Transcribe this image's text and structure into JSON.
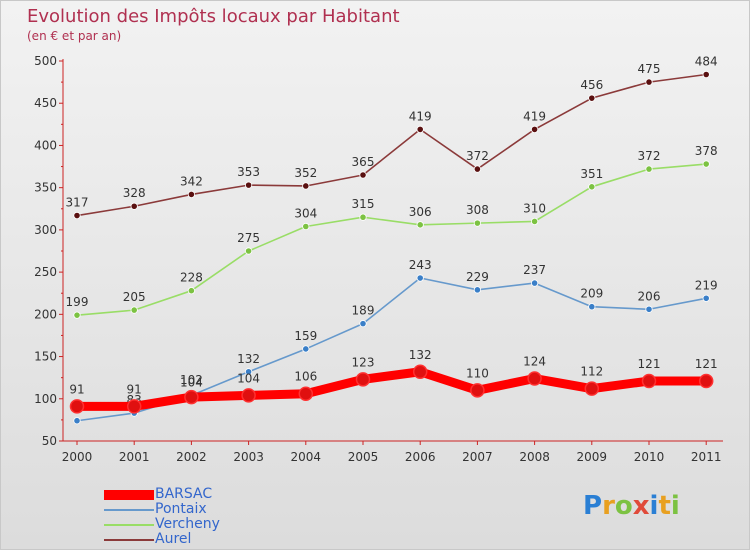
{
  "header": {
    "title": "Evolution des Impôts locaux par Habitant",
    "subtitle": "(en € et par an)"
  },
  "logo": {
    "text": "Proxiti",
    "letters": [
      {
        "ch": "P",
        "color": "#2a7fd4"
      },
      {
        "ch": "r",
        "color": "#e8a020"
      },
      {
        "ch": "o",
        "color": "#7cc242"
      },
      {
        "ch": "x",
        "color": "#e04a3a"
      },
      {
        "ch": "i",
        "color": "#2a7fd4"
      },
      {
        "ch": "t",
        "color": "#e8a020"
      },
      {
        "ch": "i",
        "color": "#7cc242"
      }
    ]
  },
  "chart_data": {
    "type": "line",
    "title": "Evolution des Impôts locaux par Habitant",
    "subtitle": "(en € et par an)",
    "x": [
      2000,
      2001,
      2002,
      2003,
      2004,
      2005,
      2006,
      2007,
      2008,
      2009,
      2010,
      2011
    ],
    "x_tick_labels": [
      "2000",
      "2001",
      "2002",
      "2003",
      "2004",
      "2005",
      "2006",
      "2007",
      "2008",
      "2009",
      "2010",
      "2011"
    ],
    "ylim": [
      50,
      500
    ],
    "y_ticks": [
      50,
      100,
      150,
      200,
      250,
      300,
      350,
      400,
      450,
      500
    ],
    "y_tick_labels": [
      "50",
      "100",
      "150",
      "200",
      "250",
      "300",
      "350",
      "400",
      "450",
      "500"
    ],
    "grid": false,
    "legend_position": "bottom-left",
    "series": [
      {
        "name": "BARSAC",
        "color": "#ff0000",
        "marker_color": "#e01010",
        "emphasis": true,
        "values": [
          91,
          91,
          102,
          104,
          106,
          123,
          132,
          110,
          124,
          112,
          121,
          121
        ],
        "labels": [
          "91",
          "91",
          "102",
          "104",
          "106",
          "123",
          "132",
          "110",
          "124",
          "112",
          "121",
          "121"
        ]
      },
      {
        "name": "Pontaix",
        "color": "#6699cc",
        "marker_color": "#3a7fc8",
        "emphasis": false,
        "values": [
          74,
          83,
          104,
          132,
          159,
          189,
          243,
          229,
          237,
          209,
          206,
          219
        ],
        "labels": [
          "",
          "83",
          "104",
          "132",
          "159",
          "189",
          "243",
          "229",
          "237",
          "209",
          "206",
          "219"
        ]
      },
      {
        "name": "Vercheny",
        "color": "#99dd66",
        "marker_color": "#7cc242",
        "emphasis": false,
        "values": [
          199,
          205,
          228,
          275,
          304,
          315,
          306,
          308,
          310,
          351,
          372,
          378
        ],
        "labels": [
          "199",
          "205",
          "228",
          "275",
          "304",
          "315",
          "306",
          "308",
          "310",
          "351",
          "372",
          "378"
        ]
      },
      {
        "name": "Aurel",
        "color": "#8b3a3a",
        "marker_color": "#5a1010",
        "emphasis": false,
        "values": [
          317,
          328,
          342,
          353,
          352,
          365,
          419,
          372,
          419,
          456,
          475,
          484
        ],
        "labels": [
          "317",
          "328",
          "342",
          "353",
          "352",
          "365",
          "419",
          "372",
          "419",
          "456",
          "475",
          "484"
        ]
      }
    ]
  },
  "legend": {
    "items": [
      {
        "label": "BARSAC",
        "color": "#ff0000",
        "thickness": 10,
        "text_color": "#3366cc"
      },
      {
        "label": "Pontaix",
        "color": "#6699cc",
        "thickness": 2,
        "text_color": "#3366cc"
      },
      {
        "label": "Vercheny",
        "color": "#99dd66",
        "thickness": 2,
        "text_color": "#3366cc"
      },
      {
        "label": "Aurel",
        "color": "#8b3a3a",
        "thickness": 2,
        "text_color": "#3366cc"
      }
    ]
  }
}
